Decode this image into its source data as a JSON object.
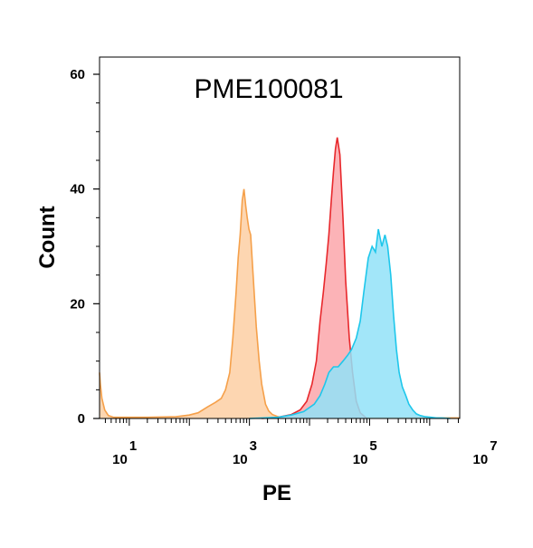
{
  "chart_data": {
    "type": "area",
    "title": "PME100081",
    "xlabel": "PE",
    "ylabel": "Count",
    "x_scale": "log",
    "xlim": [
      3.2,
      3160000
    ],
    "ylim": [
      0,
      63
    ],
    "y_ticks": [
      0,
      20,
      40,
      60
    ],
    "x_ticks": [
      {
        "value": 10,
        "base": "10",
        "exp": "1"
      },
      {
        "value": 1000,
        "base": "10",
        "exp": "3"
      },
      {
        "value": 100000,
        "base": "10",
        "exp": "5"
      },
      {
        "value": 10000000,
        "base": "10",
        "exp": "7"
      }
    ],
    "grid": false,
    "legend": "none",
    "series": [
      {
        "color": "#f5a04a",
        "fill": "#fdcfa3",
        "x": [
          3.2,
          3.3,
          3.5,
          3.9,
          4.5,
          5.5,
          8,
          20,
          60,
          100,
          140,
          200,
          270,
          340,
          400,
          470,
          530,
          600,
          650,
          700,
          760,
          810,
          870,
          920,
          980,
          1050,
          1150,
          1300,
          1450,
          1600,
          1850,
          2100,
          2400,
          3000,
          4000,
          10000,
          100000,
          3160000
        ],
        "y": [
          8,
          6,
          3.5,
          1.5,
          0.5,
          0.2,
          0.2,
          0.2,
          0.3,
          0.6,
          1,
          2,
          2.8,
          3.5,
          5,
          8,
          14,
          22,
          28,
          32,
          38,
          40,
          37,
          35,
          33,
          32,
          25,
          16,
          10,
          6,
          2.5,
          1.3,
          0.7,
          0.3,
          0.1,
          0.1,
          0.1,
          0.1
        ]
      },
      {
        "color": "#e8282c",
        "fill": "#fca6aa",
        "x": [
          1600,
          3000,
          5000,
          7000,
          9000,
          11000,
          13000,
          15000,
          17000,
          19000,
          21000,
          23000,
          25000,
          27000,
          29000,
          32000,
          36000,
          40000,
          46000,
          52000,
          60000,
          70000,
          90000
        ],
        "y": [
          0,
          0.2,
          0.7,
          1.5,
          3,
          6,
          10,
          17,
          22,
          27,
          32,
          38,
          43,
          47,
          49,
          46,
          35,
          24,
          14,
          8,
          3,
          1,
          0
        ]
      },
      {
        "color": "#1ec7eb",
        "fill": "#92e2f8",
        "x": [
          1000,
          3000,
          5000,
          8000,
          12000,
          15000,
          18000,
          21000,
          25000,
          30000,
          36000,
          43000,
          50000,
          60000,
          70000,
          80000,
          95000,
          110000,
          125000,
          140000,
          160000,
          180000,
          200000,
          225000,
          250000,
          280000,
          310000,
          350000,
          400000,
          450000,
          520000,
          600000,
          700000,
          850000,
          1050000,
          1300000,
          1600000,
          2200000
        ],
        "y": [
          0,
          0.2,
          0.6,
          1.2,
          2.5,
          4,
          6,
          8,
          9,
          9,
          10,
          11,
          12,
          14,
          17,
          22,
          28,
          30,
          29,
          33,
          30,
          32,
          30,
          25,
          18,
          12,
          8,
          5.5,
          4,
          2.5,
          1.5,
          0.8,
          0.5,
          0.3,
          0.2,
          0.1,
          0.1,
          0
        ]
      }
    ]
  }
}
